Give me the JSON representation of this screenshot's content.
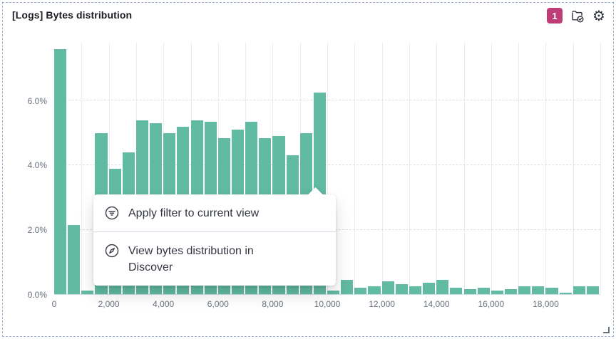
{
  "panel": {
    "title": "[Logs] Bytes distribution",
    "badge_count": "1"
  },
  "controls": {
    "icons": [
      "filter-count-badge",
      "panel-filter-check-icon",
      "gear-icon"
    ],
    "gear_glyph": "⚙"
  },
  "context_menu": {
    "items": [
      {
        "icon": "filter-circle-icon",
        "label": "Apply filter to current view"
      },
      {
        "icon": "compass-icon",
        "label": "View bytes distribution in Discover"
      }
    ]
  },
  "colors": {
    "bar": "#61baa2",
    "badge": "#bf3d77",
    "axis_label": "#69707d"
  },
  "chart_data": {
    "type": "bar",
    "title": "[Logs] Bytes distribution",
    "xlabel": "",
    "ylabel": "",
    "xlim": [
      0,
      20000
    ],
    "ylim": [
      0,
      7.8
    ],
    "bin_width": 500,
    "x_grid_step": 1000,
    "grid": "on",
    "bar_color": "#61baa2",
    "bins": [
      0,
      500,
      1000,
      1500,
      2000,
      2500,
      3000,
      3500,
      4000,
      4500,
      5000,
      5500,
      6000,
      6500,
      7000,
      7500,
      8000,
      8500,
      9000,
      9500,
      10000,
      10500,
      11000,
      11500,
      12000,
      12500,
      13000,
      13500,
      14000,
      14500,
      15000,
      15500,
      16000,
      16500,
      17000,
      17500,
      18000,
      18500,
      19000,
      19500
    ],
    "values": [
      7.6,
      2.15,
      0.12,
      5.0,
      3.9,
      4.4,
      5.4,
      5.3,
      5.0,
      5.2,
      5.4,
      5.35,
      4.85,
      5.1,
      5.35,
      4.85,
      4.9,
      4.3,
      5.0,
      6.25,
      0.1,
      0.45,
      0.2,
      0.25,
      0.4,
      0.3,
      0.25,
      0.35,
      0.45,
      0.2,
      0.15,
      0.2,
      0.1,
      0.15,
      0.25,
      0.25,
      0.2,
      0.05,
      0.25,
      0.25
    ],
    "y_ticks": [
      {
        "value": 0,
        "label": "0.0%"
      },
      {
        "value": 2,
        "label": "2.0%"
      },
      {
        "value": 4,
        "label": "4.0%"
      },
      {
        "value": 6,
        "label": "6.0%"
      }
    ],
    "x_ticks": [
      {
        "value": 0,
        "label": "0"
      },
      {
        "value": 2000,
        "label": "2,000"
      },
      {
        "value": 4000,
        "label": "4,000"
      },
      {
        "value": 6000,
        "label": "6,000"
      },
      {
        "value": 8000,
        "label": "8,000"
      },
      {
        "value": 10000,
        "label": "10,000"
      },
      {
        "value": 12000,
        "label": "12,000"
      },
      {
        "value": 14000,
        "label": "14,000"
      },
      {
        "value": 16000,
        "label": "16,000"
      },
      {
        "value": 18000,
        "label": "18,000"
      }
    ]
  }
}
